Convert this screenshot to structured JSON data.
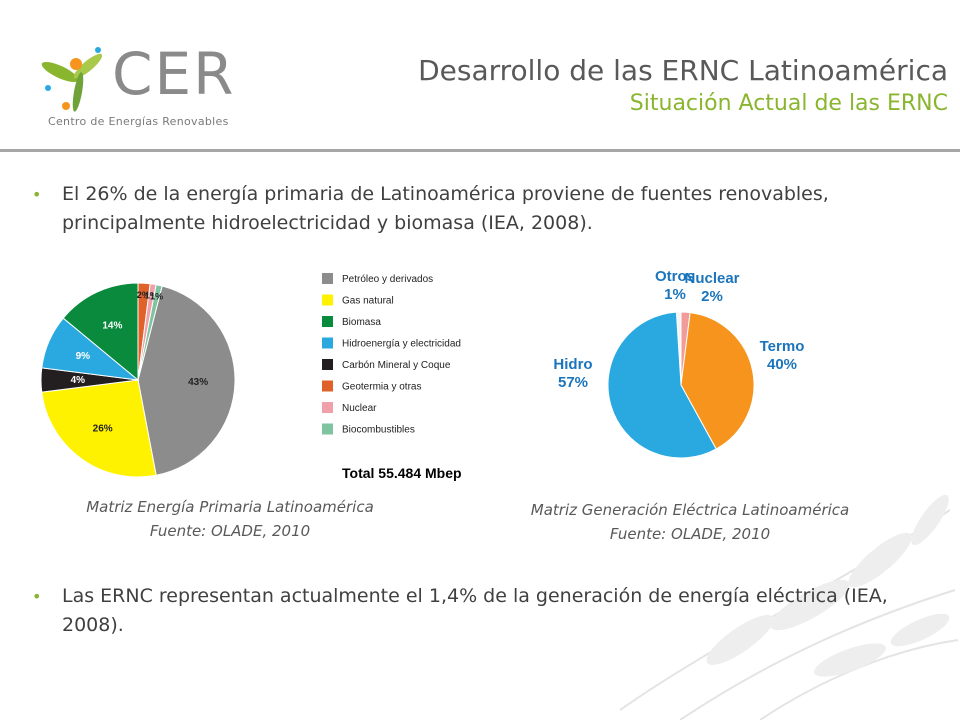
{
  "header": {
    "logo_word": "CER",
    "logo_subtitle": "Centro de Energías Renovables",
    "title": "Desarrollo de las ERNC Latinoamérica",
    "subtitle": "Situación Actual de las ERNC"
  },
  "bullets": [
    "El 26% de la energía primaria de Latinoamérica proviene de fuentes renovables, principalmente hidroelectricidad  y biomasa (IEA, 2008).",
    "Las ERNC representan actualmente el 1,4% de la generación de energía eléctrica (IEA, 2008)."
  ],
  "captions": {
    "chart1_line1": "Matriz Energía Primaria Latinoamérica",
    "chart1_line2": "Fuente: OLADE, 2010",
    "chart2_line1": "Matriz Generación Eléctrica Latinoamérica",
    "chart2_line2": "Fuente: OLADE, 2010"
  },
  "colors": {
    "accent_green": "#8ab52e",
    "rule_gray": "#a6a6a6"
  },
  "chart_data": [
    {
      "type": "pie",
      "title": "",
      "categories": [
        "Petróleo y derivados",
        "Gas natural",
        "Biomasa",
        "Hidroenergía y electricidad",
        "Carbón Mineral y Coque",
        "Geotermia y otras",
        "Nuclear",
        "Biocombustibles"
      ],
      "values": [
        43,
        26,
        14,
        9,
        4,
        2,
        1,
        1
      ],
      "labels": [
        "43%",
        "26%",
        "14%",
        "9%",
        "4%",
        "2%",
        "1%",
        "1%"
      ],
      "colors": [
        "#8c8c8c",
        "#fff200",
        "#0a8a3c",
        "#29a9e0",
        "#231f20",
        "#e0622a",
        "#f0a0a8",
        "#7fc4a0"
      ],
      "legend": [
        "Petróleo y derivados",
        "Gas natural",
        "Biomasa",
        "Hidroenergía y electricidad",
        "Carbón Mineral y Coque",
        "Geotermia y otras",
        "Nuclear",
        "Biocombustibles"
      ],
      "legend_placement": "right",
      "total_label": "Total 55.484 Mbep"
    },
    {
      "type": "pie",
      "title": "",
      "categories": [
        "Otros",
        "Nuclear",
        "Termo",
        "Hidro"
      ],
      "values": [
        1,
        2,
        40,
        57
      ],
      "labels": [
        [
          "Otros",
          "1%"
        ],
        [
          "Nuclear",
          "2%"
        ],
        [
          "Termo",
          "40%"
        ],
        [
          "Hidro",
          "57%"
        ]
      ],
      "colors": [
        "#f4f4f4",
        "#f29b9b",
        "#f7941d",
        "#29a9e0"
      ],
      "label_color": "#1b75bc"
    }
  ]
}
